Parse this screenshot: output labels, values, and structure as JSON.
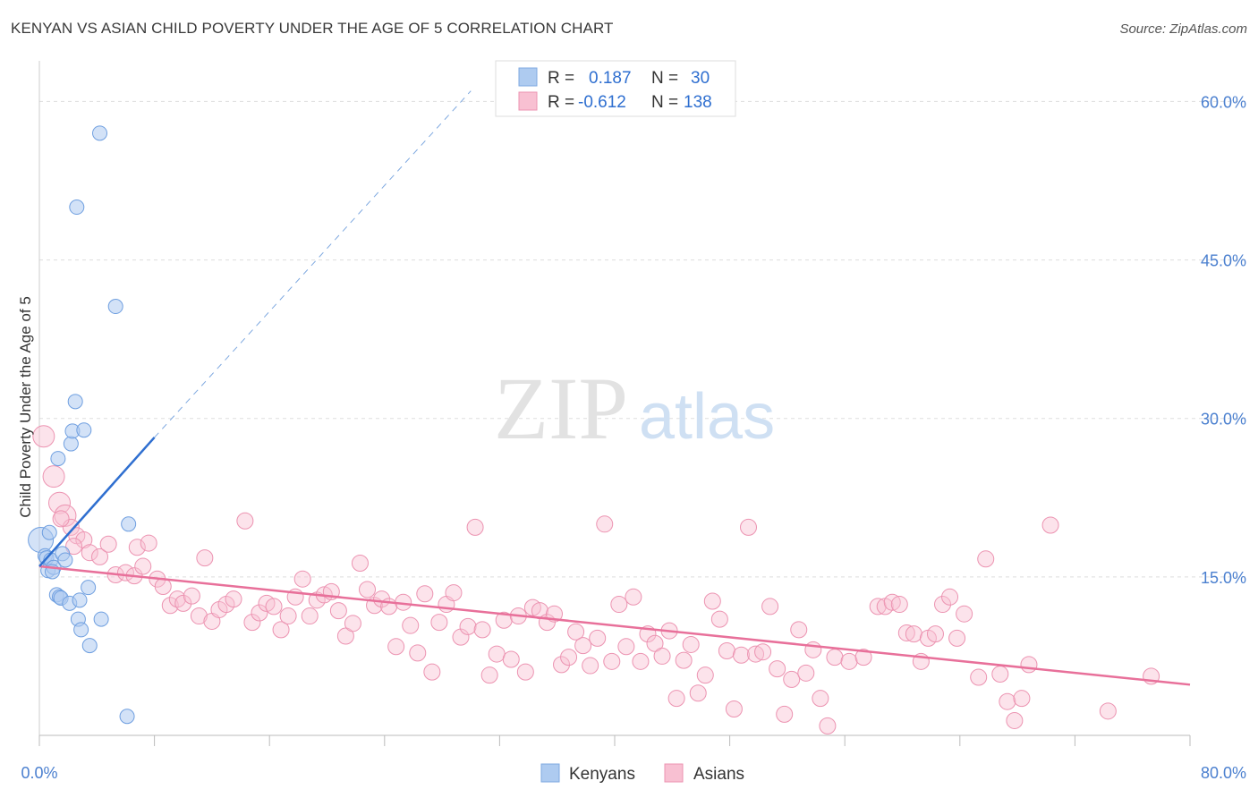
{
  "title": "KENYAN VS ASIAN CHILD POVERTY UNDER THE AGE OF 5 CORRELATION CHART",
  "source": "Source: ZipAtlas.com",
  "watermark": {
    "part1": "ZIP",
    "part2": "atlas"
  },
  "legend_box": {
    "rows": [
      {
        "r_label": "R =",
        "r_value": "0.187",
        "n_label": "N =",
        "n_value": "30",
        "color": "#aecbf0",
        "stroke": "#7fa9e0"
      },
      {
        "r_label": "R =",
        "r_value": "-0.612",
        "n_label": "N =",
        "n_value": "138",
        "color": "#f8c0d2",
        "stroke": "#ec93b1"
      }
    ]
  },
  "bottom_legend": [
    {
      "label": "Kenyans",
      "color": "#aecbf0",
      "stroke": "#7fa9e0"
    },
    {
      "label": "Asians",
      "color": "#f8c0d2",
      "stroke": "#ec93b1"
    }
  ],
  "colors": {
    "kenyan_fill": "#aecbf0",
    "kenyan_stroke": "#6f9fe0",
    "kenyan_line": "#2f6fd0",
    "asian_fill": "#f8c0d2",
    "asian_stroke": "#ec93b1",
    "asian_line": "#e8709a",
    "tick_text": "#4a7fcf",
    "grid": "#dddddd"
  },
  "chart_data": {
    "type": "scatter",
    "title": "KENYAN VS ASIAN CHILD POVERTY UNDER THE AGE OF 5 CORRELATION CHART",
    "xlabel": "",
    "ylabel": "Child Poverty Under the Age of 5",
    "xlim": [
      0,
      80
    ],
    "ylim": [
      0,
      63
    ],
    "x_tick_labels": [
      "0.0%",
      "80.0%"
    ],
    "y_ticks": [
      15,
      30,
      45,
      60
    ],
    "y_tick_labels": [
      "15.0%",
      "30.0%",
      "45.0%",
      "60.0%"
    ],
    "grid": true,
    "legend_placement": "bottom",
    "series": [
      {
        "name": "Kenyans",
        "R": 0.187,
        "N": 30,
        "points": [
          [
            0.1,
            18.5
          ],
          [
            0.4,
            17
          ],
          [
            0.5,
            16.8
          ],
          [
            0.6,
            15.6
          ],
          [
            0.7,
            19.2
          ],
          [
            0.8,
            16.6
          ],
          [
            1.0,
            15.9
          ],
          [
            1.2,
            13.3
          ],
          [
            1.3,
            26.2
          ],
          [
            1.4,
            13.1
          ],
          [
            1.5,
            13.0
          ],
          [
            1.6,
            17.2
          ],
          [
            1.8,
            16.6
          ],
          [
            2.1,
            12.5
          ],
          [
            2.2,
            27.6
          ],
          [
            2.3,
            28.8
          ],
          [
            2.5,
            31.6
          ],
          [
            2.6,
            50.0
          ],
          [
            2.7,
            11.0
          ],
          [
            2.8,
            12.8
          ],
          [
            2.9,
            10.0
          ],
          [
            3.1,
            28.9
          ],
          [
            3.4,
            14.0
          ],
          [
            4.2,
            57.0
          ],
          [
            4.3,
            11.0
          ],
          [
            5.3,
            40.6
          ],
          [
            6.2,
            20.0
          ],
          [
            3.5,
            8.5
          ],
          [
            6.1,
            1.8
          ],
          [
            0.9,
            15.5
          ]
        ],
        "trend": {
          "x": [
            0,
            8
          ],
          "y": [
            16.0,
            28.2
          ]
        },
        "trend_extension": {
          "x": [
            8,
            30
          ],
          "y": [
            28.2,
            61.0
          ]
        }
      },
      {
        "name": "Asians",
        "R": -0.612,
        "N": 138,
        "points": [
          [
            0.3,
            28.3
          ],
          [
            1.0,
            24.5
          ],
          [
            1.4,
            22.0
          ],
          [
            1.8,
            20.8
          ],
          [
            2.2,
            19.7
          ],
          [
            2.6,
            18.9
          ],
          [
            3.1,
            18.5
          ],
          [
            3.5,
            17.3
          ],
          [
            4.2,
            16.9
          ],
          [
            4.8,
            18.1
          ],
          [
            5.3,
            15.2
          ],
          [
            6.0,
            15.4
          ],
          [
            6.6,
            15.1
          ],
          [
            6.8,
            17.8
          ],
          [
            7.2,
            16.0
          ],
          [
            7.6,
            18.2
          ],
          [
            8.2,
            14.8
          ],
          [
            8.6,
            14.1
          ],
          [
            9.1,
            12.3
          ],
          [
            9.6,
            12.9
          ],
          [
            10.0,
            12.5
          ],
          [
            10.6,
            13.2
          ],
          [
            11.1,
            11.3
          ],
          [
            11.5,
            16.8
          ],
          [
            12.0,
            10.8
          ],
          [
            12.5,
            11.9
          ],
          [
            13.0,
            12.4
          ],
          [
            13.5,
            12.9
          ],
          [
            14.3,
            20.3
          ],
          [
            14.8,
            10.7
          ],
          [
            15.3,
            11.6
          ],
          [
            15.8,
            12.5
          ],
          [
            16.3,
            12.2
          ],
          [
            16.8,
            10.0
          ],
          [
            17.3,
            11.3
          ],
          [
            17.8,
            13.1
          ],
          [
            18.3,
            14.8
          ],
          [
            18.8,
            11.3
          ],
          [
            19.3,
            12.8
          ],
          [
            19.8,
            13.3
          ],
          [
            20.3,
            13.6
          ],
          [
            20.8,
            11.8
          ],
          [
            21.3,
            9.4
          ],
          [
            21.8,
            10.6
          ],
          [
            22.3,
            16.3
          ],
          [
            22.8,
            13.8
          ],
          [
            23.3,
            12.3
          ],
          [
            23.8,
            12.9
          ],
          [
            24.3,
            12.2
          ],
          [
            24.8,
            8.4
          ],
          [
            25.3,
            12.6
          ],
          [
            25.8,
            10.4
          ],
          [
            26.3,
            7.8
          ],
          [
            26.8,
            13.4
          ],
          [
            27.3,
            6.0
          ],
          [
            27.8,
            10.7
          ],
          [
            28.3,
            12.4
          ],
          [
            28.8,
            13.5
          ],
          [
            29.3,
            9.3
          ],
          [
            29.8,
            10.3
          ],
          [
            30.3,
            19.7
          ],
          [
            30.8,
            10.0
          ],
          [
            31.3,
            5.7
          ],
          [
            31.8,
            7.7
          ],
          [
            32.3,
            10.9
          ],
          [
            32.8,
            7.2
          ],
          [
            33.3,
            11.3
          ],
          [
            33.8,
            6.0
          ],
          [
            34.3,
            12.1
          ],
          [
            34.8,
            11.8
          ],
          [
            35.3,
            10.7
          ],
          [
            35.8,
            11.5
          ],
          [
            36.3,
            6.7
          ],
          [
            36.8,
            7.4
          ],
          [
            37.3,
            9.8
          ],
          [
            37.8,
            8.5
          ],
          [
            38.3,
            6.6
          ],
          [
            38.8,
            9.2
          ],
          [
            39.3,
            20.0
          ],
          [
            39.8,
            7.0
          ],
          [
            40.3,
            12.4
          ],
          [
            40.8,
            8.4
          ],
          [
            41.3,
            13.1
          ],
          [
            41.8,
            7.0
          ],
          [
            42.3,
            9.6
          ],
          [
            42.8,
            8.7
          ],
          [
            43.3,
            7.5
          ],
          [
            43.8,
            9.9
          ],
          [
            44.3,
            3.5
          ],
          [
            44.8,
            7.1
          ],
          [
            45.3,
            8.6
          ],
          [
            45.8,
            4.0
          ],
          [
            46.3,
            5.7
          ],
          [
            46.8,
            12.7
          ],
          [
            47.3,
            11.0
          ],
          [
            47.8,
            8.0
          ],
          [
            48.3,
            2.5
          ],
          [
            48.8,
            7.6
          ],
          [
            49.3,
            19.7
          ],
          [
            49.8,
            7.7
          ],
          [
            50.3,
            7.9
          ],
          [
            50.8,
            12.2
          ],
          [
            51.3,
            6.3
          ],
          [
            51.8,
            2.0
          ],
          [
            52.3,
            5.3
          ],
          [
            52.8,
            10.0
          ],
          [
            53.3,
            5.9
          ],
          [
            53.8,
            8.1
          ],
          [
            54.3,
            3.5
          ],
          [
            54.8,
            0.9
          ],
          [
            55.3,
            7.4
          ],
          [
            56.3,
            7.0
          ],
          [
            57.3,
            7.4
          ],
          [
            58.3,
            12.2
          ],
          [
            58.8,
            12.2
          ],
          [
            59.3,
            12.6
          ],
          [
            59.8,
            12.4
          ],
          [
            60.3,
            9.7
          ],
          [
            60.8,
            9.6
          ],
          [
            61.3,
            7.0
          ],
          [
            61.8,
            9.2
          ],
          [
            62.3,
            9.6
          ],
          [
            62.8,
            12.4
          ],
          [
            63.3,
            13.1
          ],
          [
            63.8,
            9.2
          ],
          [
            64.3,
            11.5
          ],
          [
            65.3,
            5.5
          ],
          [
            65.8,
            16.7
          ],
          [
            66.8,
            5.8
          ],
          [
            67.3,
            3.2
          ],
          [
            67.8,
            1.4
          ],
          [
            68.3,
            3.5
          ],
          [
            68.8,
            6.7
          ],
          [
            70.3,
            19.9
          ],
          [
            74.3,
            2.3
          ],
          [
            77.3,
            5.6
          ],
          [
            1.5,
            20.5
          ],
          [
            2.4,
            17.9
          ]
        ],
        "trend": {
          "x": [
            0,
            80
          ],
          "y": [
            16.0,
            4.8
          ]
        }
      }
    ]
  }
}
